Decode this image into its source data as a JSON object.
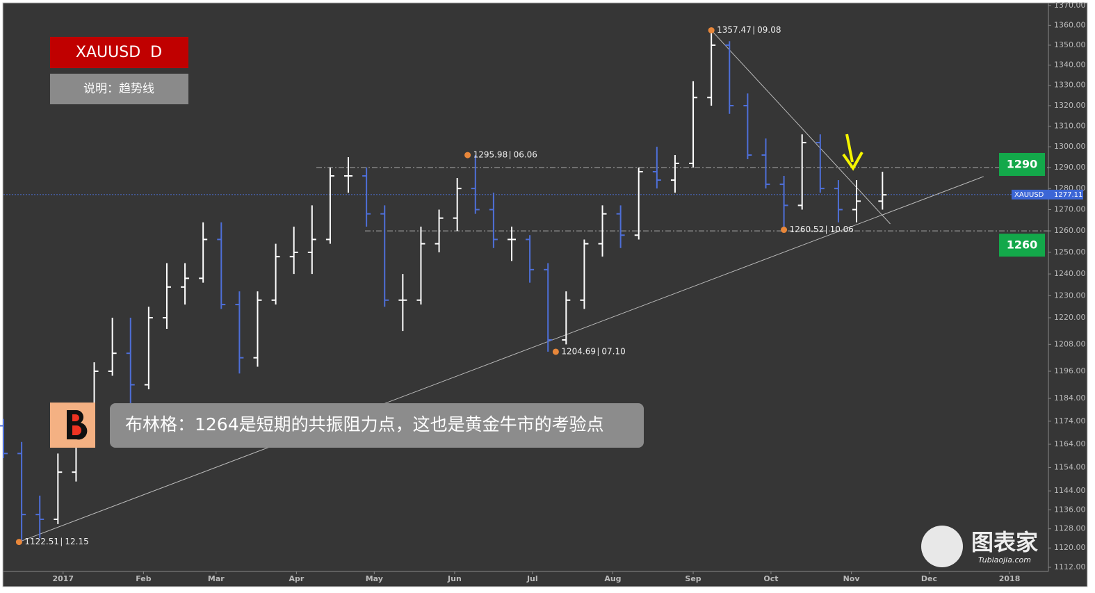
{
  "chart_data": {
    "type": "ohlc",
    "title": "XAUUSD  D",
    "subtitle": "说明：趋势线",
    "annotation": "布林格：1264是短期的共振阻力点，这也是黄金牛市的考验点",
    "watermark": {
      "name": "图表家",
      "site": "Tubiaojia.com"
    },
    "log_scale": true,
    "up_color": "#ffffff",
    "down_color": "#4e6fd8",
    "xlim": [
      "2016-12-09",
      "2018-01-16"
    ],
    "xticks": [
      {
        "value": "2017-01-01",
        "label": "2017"
      },
      {
        "value": "2017-02-01",
        "label": "Feb"
      },
      {
        "value": "2017-03-01",
        "label": "Mar"
      },
      {
        "value": "2017-04-01",
        "label": "Apr"
      },
      {
        "value": "2017-05-01",
        "label": "May"
      },
      {
        "value": "2017-06-01",
        "label": "Jun"
      },
      {
        "value": "2017-07-01",
        "label": "Jul"
      },
      {
        "value": "2017-08-01",
        "label": "Aug"
      },
      {
        "value": "2017-09-01",
        "label": "Sep"
      },
      {
        "value": "2017-10-01",
        "label": "Oct"
      },
      {
        "value": "2017-11-01",
        "label": "Nov"
      },
      {
        "value": "2017-12-01",
        "label": "Dec"
      },
      {
        "value": "2018-01-01",
        "label": "2018"
      }
    ],
    "ylim": [
      1112,
      1370
    ],
    "yticks": [
      {
        "value": 1112,
        "label": "1112.00"
      },
      {
        "value": 1120,
        "label": "1120.00"
      },
      {
        "value": 1128,
        "label": "1128.00"
      },
      {
        "value": 1136,
        "label": "1136.00"
      },
      {
        "value": 1144,
        "label": "1144.00"
      },
      {
        "value": 1154,
        "label": "1154.00"
      },
      {
        "value": 1164,
        "label": "1164.00"
      },
      {
        "value": 1174,
        "label": "1174.00"
      },
      {
        "value": 1184,
        "label": "1184.00"
      },
      {
        "value": 1196,
        "label": "1196.00"
      },
      {
        "value": 1208,
        "label": "1208.00"
      },
      {
        "value": 1220,
        "label": "1220.00"
      },
      {
        "value": 1230,
        "label": "1230.00"
      },
      {
        "value": 1240,
        "label": "1240.00"
      },
      {
        "value": 1250,
        "label": "1250.00"
      },
      {
        "value": 1260,
        "label": "1260.00"
      },
      {
        "value": 1270,
        "label": "1270.00"
      },
      {
        "value": 1280,
        "label": "1280.00"
      },
      {
        "value": 1290,
        "label": "1290.00"
      },
      {
        "value": 1300,
        "label": "1300.00"
      },
      {
        "value": 1310,
        "label": "1310.00"
      },
      {
        "value": 1320,
        "label": "1320.00"
      },
      {
        "value": 1330,
        "label": "1330.00"
      },
      {
        "value": 1340,
        "label": "1340.00"
      },
      {
        "value": 1350,
        "label": "1350.00"
      },
      {
        "value": 1360,
        "label": "1360.00"
      },
      {
        "value": 1370,
        "label": "1370.00"
      }
    ],
    "bars": {
      "x": [
        "2016-12-09",
        "2016-12-16",
        "2016-12-23",
        "2016-12-30",
        "2017-01-06",
        "2017-01-13",
        "2017-01-20",
        "2017-01-27",
        "2017-02-03",
        "2017-02-10",
        "2017-02-17",
        "2017-02-24",
        "2017-03-03",
        "2017-03-10",
        "2017-03-17",
        "2017-03-24",
        "2017-03-31",
        "2017-04-07",
        "2017-04-14",
        "2017-04-21",
        "2017-04-28",
        "2017-05-05",
        "2017-05-12",
        "2017-05-19",
        "2017-05-26",
        "2017-06-02",
        "2017-06-09",
        "2017-06-16",
        "2017-06-23",
        "2017-06-30",
        "2017-07-07",
        "2017-07-14",
        "2017-07-21",
        "2017-07-28",
        "2017-08-04",
        "2017-08-11",
        "2017-08-18",
        "2017-08-25",
        "2017-09-01",
        "2017-09-08",
        "2017-09-15",
        "2017-09-22",
        "2017-09-29",
        "2017-10-06",
        "2017-10-13",
        "2017-10-20",
        "2017-10-27",
        "2017-11-03",
        "2017-11-13"
      ],
      "open": [
        1172,
        1160,
        1134,
        1132,
        1152,
        1173,
        1196,
        1204,
        1190,
        1220,
        1234,
        1238,
        1256,
        1226,
        1202,
        1228,
        1248,
        1250,
        1256,
        1286,
        1286,
        1268,
        1228,
        1228,
        1254,
        1266,
        1280,
        1270,
        1256,
        1256,
        1242,
        1210,
        1228,
        1254,
        1268,
        1258,
        1288,
        1284,
        1292,
        1324,
        1350,
        1320,
        1296,
        1282,
        1272,
        1302,
        1280,
        1270,
        1274
      ],
      "high": [
        1175,
        1165,
        1142,
        1160,
        1180,
        1200,
        1220,
        1220,
        1225,
        1245,
        1245,
        1264,
        1264,
        1232,
        1232,
        1254,
        1262,
        1272,
        1290,
        1295,
        1290,
        1272,
        1240,
        1262,
        1270,
        1285,
        1296,
        1278,
        1262,
        1258,
        1245,
        1232,
        1256,
        1272,
        1272,
        1290,
        1300,
        1296,
        1332,
        1357.5,
        1352,
        1326,
        1304,
        1286,
        1306,
        1306,
        1284,
        1284,
        1288
      ],
      "low": [
        1158,
        1122.5,
        1124,
        1130,
        1148,
        1170,
        1194,
        1180,
        1188,
        1215,
        1226,
        1236,
        1224,
        1195,
        1198,
        1226,
        1240,
        1240,
        1254,
        1278,
        1262,
        1225,
        1214,
        1226,
        1250,
        1260,
        1268,
        1252,
        1246,
        1236,
        1204.7,
        1208,
        1224,
        1248,
        1252,
        1256,
        1280,
        1278,
        1290,
        1320,
        1316,
        1294,
        1280,
        1260.5,
        1270,
        1278,
        1264,
        1264,
        1270
      ],
      "close": [
        1160,
        1134,
        1132,
        1152,
        1173,
        1196,
        1204,
        1190,
        1220,
        1234,
        1238,
        1256,
        1226,
        1202,
        1228,
        1248,
        1250,
        1256,
        1286,
        1286,
        1268,
        1228,
        1228,
        1254,
        1266,
        1280,
        1270,
        1256,
        1256,
        1242,
        1210,
        1228,
        1254,
        1268,
        1258,
        1288,
        1284,
        1292,
        1324,
        1350,
        1320,
        1296,
        1282,
        1272,
        1302,
        1280,
        1270,
        1274,
        1277
      ]
    },
    "markers": [
      {
        "x": "2016-12-15",
        "value": 1122.51,
        "date_label": "12.15"
      },
      {
        "x": "2017-06-06",
        "value": 1295.98,
        "date_label": "06.06"
      },
      {
        "x": "2017-07-10",
        "value": 1204.69,
        "date_label": "07.10"
      },
      {
        "x": "2017-09-08",
        "value": 1357.47,
        "date_label": "09.08"
      },
      {
        "x": "2017-10-06",
        "value": 1260.52,
        "date_label": "10.06"
      }
    ],
    "trendlines": [
      {
        "x": [
          "2016-12-15",
          "2017-12-22"
        ],
        "values": [
          1122.51,
          1285.7
        ]
      },
      {
        "x": [
          "2017-09-08",
          "2017-11-16"
        ],
        "values": [
          1357.47,
          1263.3
        ]
      }
    ],
    "levels": [
      1290,
      1260
    ],
    "last_price": {
      "name": "XAUUSD",
      "value": 1277.11
    }
  }
}
